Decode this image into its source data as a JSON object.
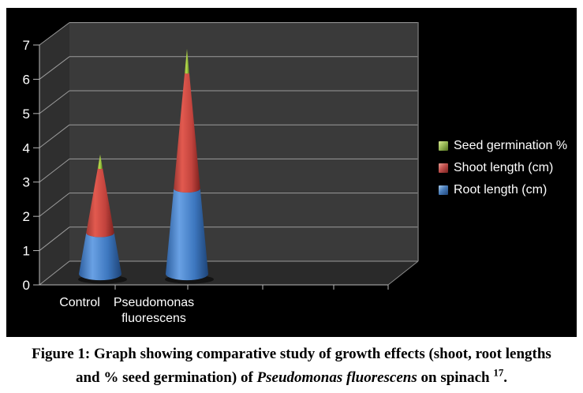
{
  "chart_data": {
    "type": "bar",
    "subtype": "3d-stacked-cone",
    "title": "",
    "xlabel": "",
    "ylabel": "",
    "ylim": [
      0,
      7
    ],
    "yticks": [
      0,
      1,
      2,
      3,
      4,
      5,
      6,
      7
    ],
    "grid": true,
    "legend_position": "right",
    "background_color": "#000000",
    "back_wall_color": "#3a3a3a",
    "side_wall_color": "#2f2f2f",
    "floor_color": "#2a2a2a",
    "gridline_color": "#9b9b9b",
    "axis_color": "#b8b8b8",
    "text_color": "#ffffff",
    "categories": [
      "Control",
      "Pseudomonas fluorescens"
    ],
    "category_label_lines": [
      [
        "Control"
      ],
      [
        "Pseudomonas",
        "fluorescens"
      ]
    ],
    "series": [
      {
        "name": "Root length (cm)",
        "color": "#4a7ebb",
        "gradient": [
          "#2e5f9f",
          "#69a1e4",
          "#3d77bf",
          "#1e4477"
        ],
        "values": [
          1.2,
          2.5
        ]
      },
      {
        "name": "Shoot length (cm)",
        "color": "#c0504d",
        "gradient": [
          "#a03833",
          "#e25a4f",
          "#c2433d",
          "#7c211e"
        ],
        "values": [
          1.9,
          3.4
        ]
      },
      {
        "name": "Seed germination %",
        "color": "#9bbb59",
        "gradient": [
          "#7fa32e",
          "#bad94e",
          "#8db93a",
          "#4e6b1a"
        ],
        "values": [
          0.4,
          0.7
        ]
      }
    ],
    "stacked_totals": [
      3.5,
      6.6
    ]
  },
  "legend": {
    "items": [
      {
        "label": "Seed germination %",
        "color": "#9bbb59",
        "swatch": [
          "#d8e890",
          "#9bbb59",
          "#51701d"
        ]
      },
      {
        "label": "Shoot length (cm)",
        "color": "#c0504d",
        "swatch": [
          "#e89a90",
          "#c0504d",
          "#77201d"
        ]
      },
      {
        "label": "Root length (cm)",
        "color": "#4a7ebb",
        "swatch": [
          "#a8cbec",
          "#4a7ebb",
          "#1f4579"
        ]
      }
    ]
  },
  "caption": {
    "line1": "Figure 1: Graph showing comparative study of growth effects (shoot, root lengths",
    "line2_pre": "and % seed germination) of ",
    "line2_italic": "Pseudomonas fluorescens",
    "line2_mid": " on spinach ",
    "line2_sup": "17",
    "line2_end": "."
  }
}
